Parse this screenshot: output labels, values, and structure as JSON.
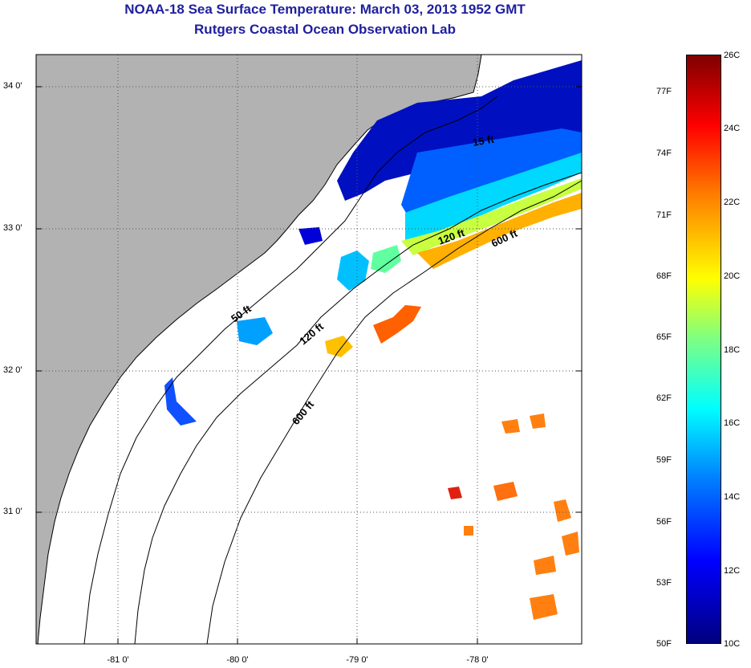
{
  "title": {
    "line1": "NOAA-18 Sea Surface Temperature:  March 03, 2013 1952 GMT",
    "line2": "Rutgers Coastal Ocean Observation Lab"
  },
  "map": {
    "lat_labels": [
      "34 0'",
      "33 0'",
      "32 0'",
      "31 0'"
    ],
    "lon_labels": [
      "-81 0'",
      "-80 0'",
      "-79 0'",
      "-78 0'"
    ],
    "contour_labels": [
      "50 ft",
      "120 ft",
      "600 ft",
      "120 ft",
      "600 ft",
      "15 ft"
    ],
    "colors": {
      "land": "#b2b2b2",
      "ocean_no_data": "#ffffff",
      "grid": "#555555"
    }
  },
  "colorbar": {
    "fahrenheit_ticks": [
      "77F",
      "74F",
      "71F",
      "68F",
      "65F",
      "62F",
      "59F",
      "56F",
      "53F",
      "50F"
    ],
    "celsius_ticks": [
      "26C",
      "24C",
      "22C",
      "20C",
      "18C",
      "16C",
      "14C",
      "12C",
      "10C"
    ],
    "colors": [
      "#00007f",
      "#0000ff",
      "#0080ff",
      "#00ffff",
      "#80ff80",
      "#ffff00",
      "#ff8000",
      "#ff0000",
      "#7f0000"
    ]
  }
}
